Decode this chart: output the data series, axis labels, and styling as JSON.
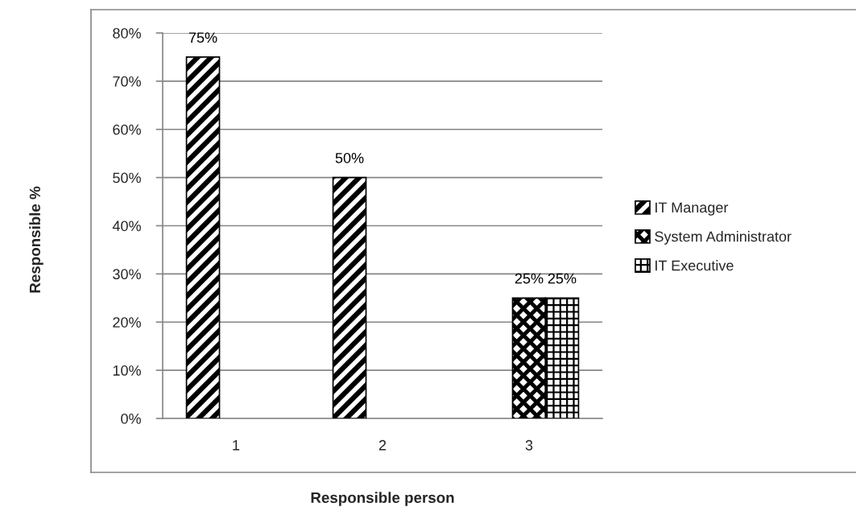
{
  "chart_data": {
    "type": "bar",
    "xlabel": "Responsible person",
    "ylabel": "Responsible %",
    "categories": [
      "1",
      "2",
      "3"
    ],
    "series": [
      {
        "name": "IT Manager",
        "color": "#000000",
        "values": [
          75,
          50,
          null
        ],
        "value_labels": [
          "75%",
          "50%",
          null
        ]
      },
      {
        "name": "System Administrator",
        "color": "#000000",
        "values": [
          null,
          null,
          25
        ],
        "value_labels": [
          null,
          null,
          "25%"
        ]
      },
      {
        "name": "IT Executive",
        "color": "#000000",
        "values": [
          null,
          null,
          25
        ],
        "value_labels": [
          null,
          null,
          "25%"
        ]
      }
    ],
    "ylim": [
      0,
      80
    ],
    "yticks": [
      {
        "value": 0,
        "label": "0%"
      },
      {
        "value": 10,
        "label": "10%"
      },
      {
        "value": 20,
        "label": "20%"
      },
      {
        "value": 30,
        "label": "30%"
      },
      {
        "value": 40,
        "label": "40%"
      },
      {
        "value": 50,
        "label": "50%"
      },
      {
        "value": 60,
        "label": "60%"
      },
      {
        "value": 70,
        "label": "70%"
      },
      {
        "value": 80,
        "label": "80%"
      }
    ],
    "grid": "y",
    "legend": "right"
  }
}
